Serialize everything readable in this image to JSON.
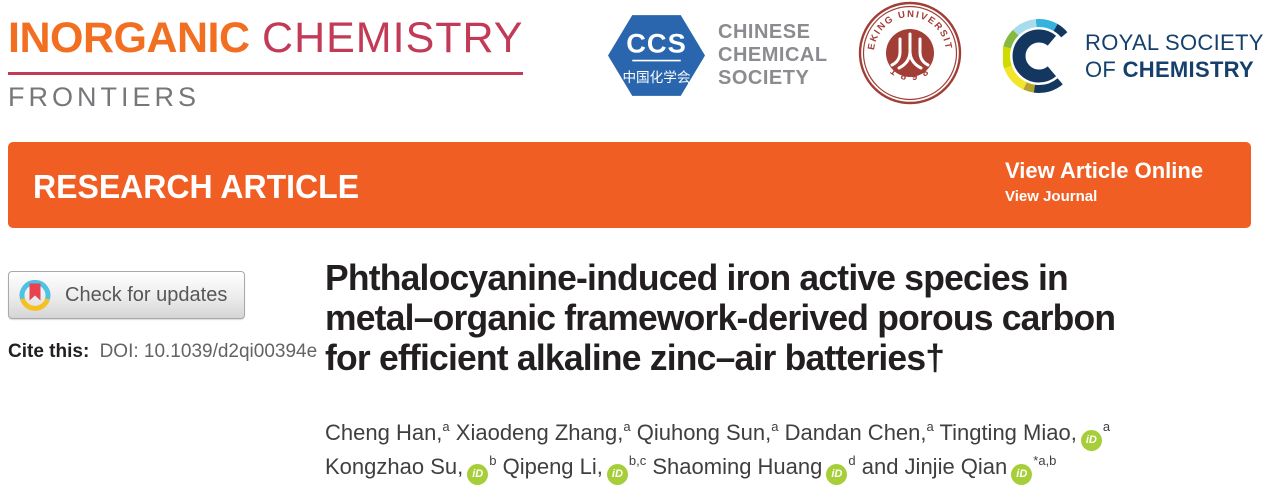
{
  "masthead": {
    "journal": {
      "name_primary": "INORGANIC",
      "name_secondary": "CHEMISTRY",
      "subtitle": "FRONTIERS"
    },
    "ccs": {
      "abbr": "CCS",
      "chinese": "中国化学会",
      "line1": "CHINESE",
      "line2": "CHEMICAL",
      "line3": "SOCIETY"
    },
    "pku": {
      "arc_text": "PEKING UNIVERSITY",
      "year": "1 8 9 8"
    },
    "rsc": {
      "line1": "ROYAL SOCIETY",
      "line2_prefix": "OF ",
      "line2_bold": "CHEMISTRY"
    }
  },
  "banner": {
    "label": "RESEARCH ARTICLE",
    "view_article_online": "View Article Online",
    "view_journal": "View Journal"
  },
  "sidebar": {
    "check_updates_label": "Check for updates",
    "cite_label": "Cite this:",
    "cite_value": "DOI: 10.1039/d2qi00394e"
  },
  "article": {
    "title_lines": [
      "Phthalocyanine-induced iron active species in",
      "metal–organic framework-derived porous carbon",
      "for efficient alkaline zinc–air batteries†"
    ],
    "orcid_label": "iD",
    "authors_line1": [
      {
        "name": "Cheng Han,",
        "affil": "a",
        "orcid": false
      },
      {
        "name": "Xiaodeng Zhang,",
        "affil": "a",
        "orcid": false
      },
      {
        "name": "Qiuhong Sun,",
        "affil": "a",
        "orcid": false
      },
      {
        "name": "Dandan Chen,",
        "affil": "a",
        "orcid": false
      },
      {
        "name": "Tingting Miao,",
        "affil": "a",
        "orcid": true
      }
    ],
    "authors_line2": [
      {
        "name": "Kongzhao Su,",
        "affil": "b",
        "orcid": true
      },
      {
        "name": "Qipeng Li,",
        "affil": "b,c",
        "orcid": true
      },
      {
        "name": "Shaoming Huang",
        "affil": "d",
        "orcid": true
      },
      {
        "name": "and Jinjie Qian",
        "affil": "*a,b",
        "orcid": true
      }
    ]
  },
  "colors": {
    "banner_orange": "#f05e23",
    "journal_orange": "#f26f21",
    "journal_crimson": "#c23a56",
    "subtitle_gray": "#76777a",
    "ccs_blue": "#2966ad",
    "pku_red": "#a13e36",
    "rsc_navy": "#14375f",
    "orcid_green": "#a6ce39",
    "title_black": "#231f20",
    "author_gray": "#3f3f3f"
  }
}
